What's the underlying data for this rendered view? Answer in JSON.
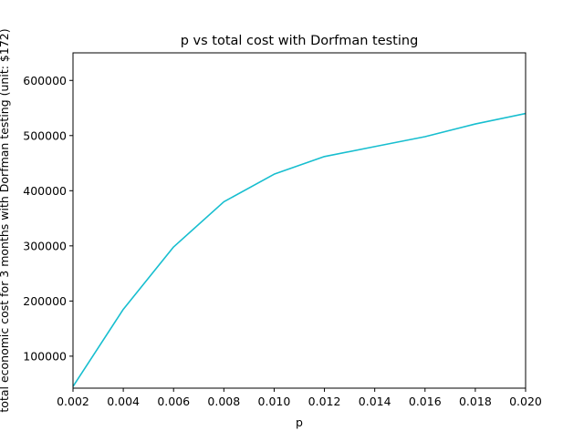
{
  "chart_data": {
    "type": "line",
    "title": "p vs total cost with Dorfman testing",
    "xlabel": "p",
    "ylabel": "total economic cost for 3 months with Dorfman testing (unit: $172)",
    "xlim": [
      0.002,
      0.02
    ],
    "ylim": [
      42000,
      650000
    ],
    "x_ticks": [
      "0.002",
      "0.004",
      "0.006",
      "0.008",
      "0.010",
      "0.012",
      "0.014",
      "0.016",
      "0.018",
      "0.020"
    ],
    "y_ticks": [
      "100000",
      "200000",
      "300000",
      "400000",
      "500000",
      "600000"
    ],
    "grid": false,
    "legend": "none",
    "series": [
      {
        "color": "#17becf",
        "x": [
          0.002,
          0.004,
          0.006,
          0.008,
          0.01,
          0.012,
          0.014,
          0.016,
          0.018,
          0.02
        ],
        "y": [
          45000,
          185000,
          298000,
          380000,
          430000,
          462000,
          480000,
          498000,
          521000,
          540000
        ]
      }
    ]
  }
}
